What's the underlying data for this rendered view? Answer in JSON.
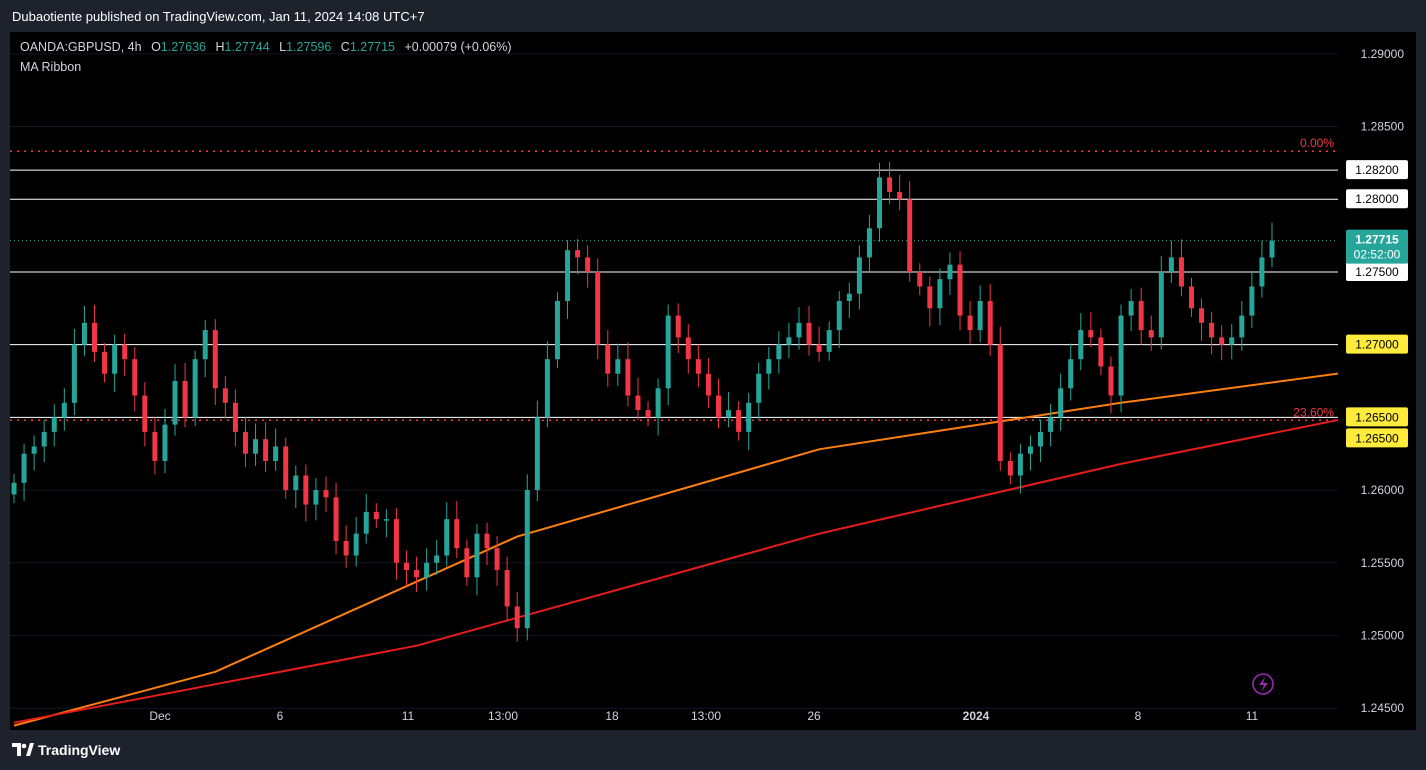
{
  "header": {
    "published": "Dubaotiente published on TradingView.com, Jan 11, 2024 14:08 UTC+7"
  },
  "legend": {
    "symbol": "OANDA:GBPUSD",
    "interval": "4h",
    "open_label": "O",
    "open": "1.27636",
    "high_label": "H",
    "high": "1.27744",
    "low_label": "L",
    "low": "1.27596",
    "close_label": "C",
    "close": "1.27715",
    "change": "+0.00079 (+0.06%)",
    "indicator": "MA Ribbon"
  },
  "price_axis": {
    "ticks": [
      "1.29000",
      "1.28500",
      "1.28000",
      "1.27500",
      "1.27000",
      "1.26500",
      "1.26000",
      "1.25500",
      "1.25000",
      "1.24500"
    ],
    "current_price": "1.27715",
    "countdown": "02:52:00"
  },
  "time_axis": {
    "ticks": [
      "Dec",
      "6",
      "11",
      "13:00",
      "18",
      "13:00",
      "26",
      "2024",
      "8",
      "11"
    ]
  },
  "levels": [
    {
      "price": 1.282,
      "label": "1.28200"
    },
    {
      "price": 1.28,
      "label": "1.28000"
    },
    {
      "price": 1.275,
      "label": "1.27500"
    },
    {
      "price": 1.27,
      "label": "1.27000"
    },
    {
      "price": 1.265,
      "label": "1.26500"
    }
  ],
  "fibonacci": [
    {
      "price": 1.2833,
      "label": "0.00%"
    },
    {
      "price": 1.2648,
      "label": "23.60%"
    }
  ],
  "colors": {
    "up": "#26a69a",
    "down": "#f23645",
    "ma_fast": "#ff7f0e",
    "ma_slow": "#e61c1c",
    "fib": "#f23645",
    "highlight": "#ffeb3b"
  },
  "footer": {
    "brand": "TradingView"
  },
  "chart_data": {
    "type": "candlestick",
    "symbol": "OANDA:GBPUSD",
    "interval": "4h",
    "ylim": [
      1.2435,
      1.2915
    ],
    "closes": [
      1.2605,
      1.2625,
      1.263,
      1.264,
      1.265,
      1.266,
      1.27,
      1.2715,
      1.2695,
      1.268,
      1.27,
      1.269,
      1.2665,
      1.264,
      1.262,
      1.2645,
      1.2675,
      1.265,
      1.269,
      1.271,
      1.267,
      1.266,
      1.264,
      1.2625,
      1.2635,
      1.262,
      1.263,
      1.26,
      1.261,
      1.259,
      1.26,
      1.2595,
      1.2565,
      1.2555,
      1.257,
      1.2585,
      1.258,
      1.258,
      1.255,
      1.2545,
      1.254,
      1.255,
      1.2555,
      1.258,
      1.256,
      1.254,
      1.257,
      1.256,
      1.2545,
      1.252,
      1.2505,
      1.26,
      1.265,
      1.269,
      1.273,
      1.2765,
      1.276,
      1.275,
      1.27,
      1.268,
      1.269,
      1.2665,
      1.2655,
      1.265,
      1.267,
      1.272,
      1.2705,
      1.269,
      1.268,
      1.2665,
      1.265,
      1.2655,
      1.264,
      1.266,
      1.268,
      1.269,
      1.27,
      1.2705,
      1.2715,
      1.27,
      1.2695,
      1.271,
      1.273,
      1.2735,
      1.276,
      1.278,
      1.2815,
      1.2805,
      1.28,
      1.275,
      1.274,
      1.2725,
      1.2745,
      1.2755,
      1.272,
      1.271,
      1.273,
      1.27,
      1.262,
      1.261,
      1.2625,
      1.263,
      1.264,
      1.265,
      1.267,
      1.269,
      1.271,
      1.2705,
      1.2685,
      1.2665,
      1.272,
      1.273,
      1.271,
      1.2705,
      1.275,
      1.276,
      1.274,
      1.2725,
      1.2715,
      1.2705,
      1.27,
      1.2705,
      1.272,
      1.274,
      1.276,
      1.27715
    ],
    "ma_fast_points": [
      [
        0,
        1.2438
      ],
      [
        20,
        1.2475
      ],
      [
        50,
        1.2568
      ],
      [
        80,
        1.2628
      ],
      [
        110,
        1.266
      ],
      [
        140,
        1.2688
      ]
    ],
    "ma_slow_points": [
      [
        0,
        1.244
      ],
      [
        40,
        1.2493
      ],
      [
        80,
        1.257
      ],
      [
        110,
        1.2618
      ],
      [
        140,
        1.266
      ]
    ]
  }
}
